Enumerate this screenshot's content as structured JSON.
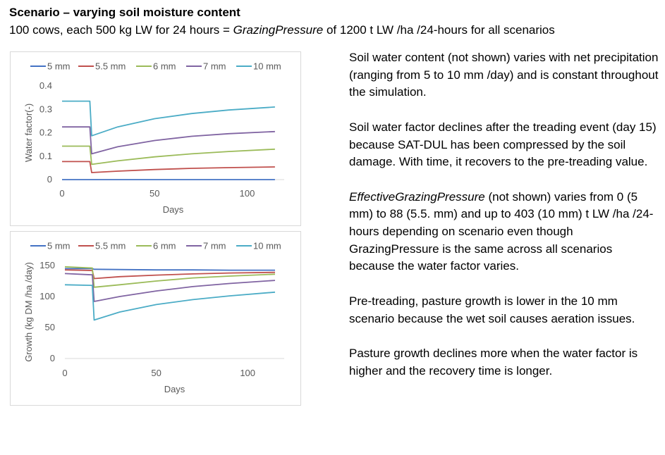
{
  "header": {
    "title": "Scenario – varying soil moisture content",
    "subtitle_pre": "100 cows, each 500 kg LW for 24 hours = ",
    "subtitle_em": "GrazingPressure",
    "subtitle_post": " of 1200 t LW /ha /24-hours for all scenarios"
  },
  "notes": {
    "p1": "Soil water content (not shown) varies with net precipitation (ranging from 5 to 10 mm /day) and is constant throughout the simulation.",
    "p2": "Soil water factor declines after the treading event (day 15) because SAT-DUL has been compressed by the soil damage. With time, it recovers to the pre-treading value.",
    "p3_em": "EffectiveGrazingPressure",
    "p3_rest": " (not shown) varies from 0 (5 mm) to 88 (5.5. mm) and up to 403 (10 mm) t LW /ha /24-hours depending on scenario even though GrazingPressure is the same across all scenarios because the water factor varies.",
    "p4": "Pre-treading, pasture growth is lower in the 10 mm scenario because the wet soil causes aeration issues.",
    "p5": "Pasture growth declines more when the water factor is higher and the recovery time is longer."
  },
  "chart_data": [
    {
      "type": "line",
      "xlabel": "Days",
      "ylabel": "Water factor(-)",
      "xlim": [
        0,
        120
      ],
      "ylim": [
        0,
        0.4
      ],
      "xticks": [
        0,
        50,
        100
      ],
      "yticks": [
        0,
        0.1,
        0.2,
        0.3,
        0.4
      ],
      "ytick_labels": [
        "0",
        "0.1",
        "0.2",
        "0.3",
        "0.4"
      ],
      "grid": false,
      "legend": "top",
      "series": [
        {
          "name": "5 mm",
          "color": "#4472c4",
          "x": [
            0,
            15,
            16,
            30,
            50,
            70,
            90,
            115
          ],
          "y": [
            0,
            0,
            0,
            0,
            0,
            0,
            0,
            0
          ]
        },
        {
          "name": "5.5 mm",
          "color": "#c0504d",
          "x": [
            0,
            15,
            16,
            30,
            50,
            70,
            90,
            115
          ],
          "y": [
            0.077,
            0.077,
            0.03,
            0.036,
            0.043,
            0.048,
            0.051,
            0.054
          ]
        },
        {
          "name": "6 mm",
          "color": "#9bbb59",
          "x": [
            0,
            15,
            16,
            30,
            50,
            70,
            90,
            115
          ],
          "y": [
            0.143,
            0.143,
            0.065,
            0.08,
            0.097,
            0.11,
            0.12,
            0.13
          ]
        },
        {
          "name": "7 mm",
          "color": "#8064a2",
          "x": [
            0,
            15,
            16,
            30,
            50,
            70,
            90,
            115
          ],
          "y": [
            0.225,
            0.225,
            0.11,
            0.14,
            0.167,
            0.185,
            0.196,
            0.205
          ]
        },
        {
          "name": "10 mm",
          "color": "#4bacc6",
          "x": [
            0,
            15,
            16,
            30,
            50,
            70,
            90,
            115
          ],
          "y": [
            0.335,
            0.335,
            0.187,
            0.225,
            0.26,
            0.282,
            0.297,
            0.31
          ]
        }
      ]
    },
    {
      "type": "line",
      "xlabel": "Days",
      "ylabel": "Growth (kg DM /ha /day)",
      "xlim": [
        0,
        120
      ],
      "ylim": [
        0,
        150
      ],
      "xticks": [
        0,
        50,
        100
      ],
      "yticks": [
        0,
        50,
        100,
        150
      ],
      "ytick_labels": [
        "0",
        "50",
        "100",
        "150"
      ],
      "grid": false,
      "legend": "top",
      "series": [
        {
          "name": "5 mm",
          "color": "#4472c4",
          "x": [
            0,
            15,
            16,
            30,
            50,
            70,
            90,
            115
          ],
          "y": [
            145,
            145,
            144,
            143.5,
            143,
            143,
            142.5,
            142.5
          ]
        },
        {
          "name": "5.5 mm",
          "color": "#c0504d",
          "x": [
            0,
            15,
            16,
            30,
            50,
            70,
            90,
            115
          ],
          "y": [
            143,
            142,
            129,
            132,
            134.5,
            136.5,
            138,
            139
          ]
        },
        {
          "name": "6 mm",
          "color": "#9bbb59",
          "x": [
            0,
            15,
            16,
            30,
            50,
            70,
            90,
            115
          ],
          "y": [
            148,
            146,
            115,
            119,
            125,
            130,
            133,
            136
          ]
        },
        {
          "name": "7 mm",
          "color": "#8064a2",
          "x": [
            0,
            15,
            16,
            30,
            50,
            70,
            90,
            115
          ],
          "y": [
            137,
            135,
            92,
            100,
            109,
            116,
            121,
            126
          ]
        },
        {
          "name": "10 mm",
          "color": "#4bacc6",
          "x": [
            0,
            15,
            16,
            30,
            50,
            70,
            90,
            115
          ],
          "y": [
            119,
            118,
            62,
            75,
            87,
            95,
            101,
            107
          ]
        }
      ]
    }
  ]
}
